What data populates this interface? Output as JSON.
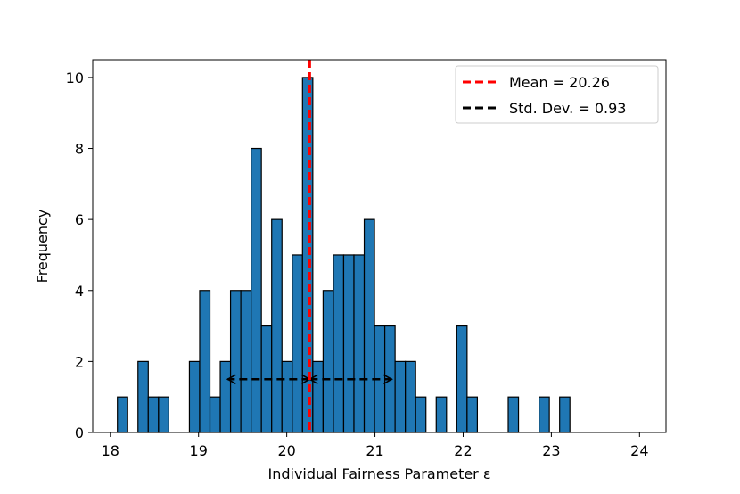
{
  "chart_data": {
    "type": "bar",
    "title": "",
    "xlabel": "Individual Fairness Parameter ε",
    "ylabel": "Frequency",
    "xlim": [
      17.8,
      24.3
    ],
    "ylim": [
      0,
      10.5
    ],
    "xticks": [
      18,
      19,
      20,
      21,
      22,
      23,
      24
    ],
    "yticks": [
      0,
      2,
      4,
      6,
      8,
      10
    ],
    "bin_start": 18.08,
    "bin_width": 0.1166,
    "counts": [
      1,
      0,
      2,
      1,
      1,
      0,
      0,
      2,
      4,
      1,
      2,
      4,
      4,
      8,
      3,
      6,
      2,
      5,
      10,
      2,
      4,
      5,
      5,
      5,
      6,
      3,
      3,
      2,
      2,
      1,
      0,
      1,
      0,
      3,
      1,
      0,
      0,
      0,
      1,
      0,
      0,
      1,
      0,
      1,
      0,
      0,
      0,
      0,
      0,
      0,
      0
    ],
    "bar_color": "#1f77b4",
    "mean": 20.26,
    "std": 0.93,
    "std_arrow_y": 1.5,
    "series": [
      {
        "name": "Mean = 20.26",
        "color": "#ff0000",
        "style": "dashed"
      },
      {
        "name": "Std. Dev. = 0.93",
        "color": "#000000",
        "style": "dashed"
      }
    ],
    "legend_position": "upper right",
    "grid": false
  }
}
